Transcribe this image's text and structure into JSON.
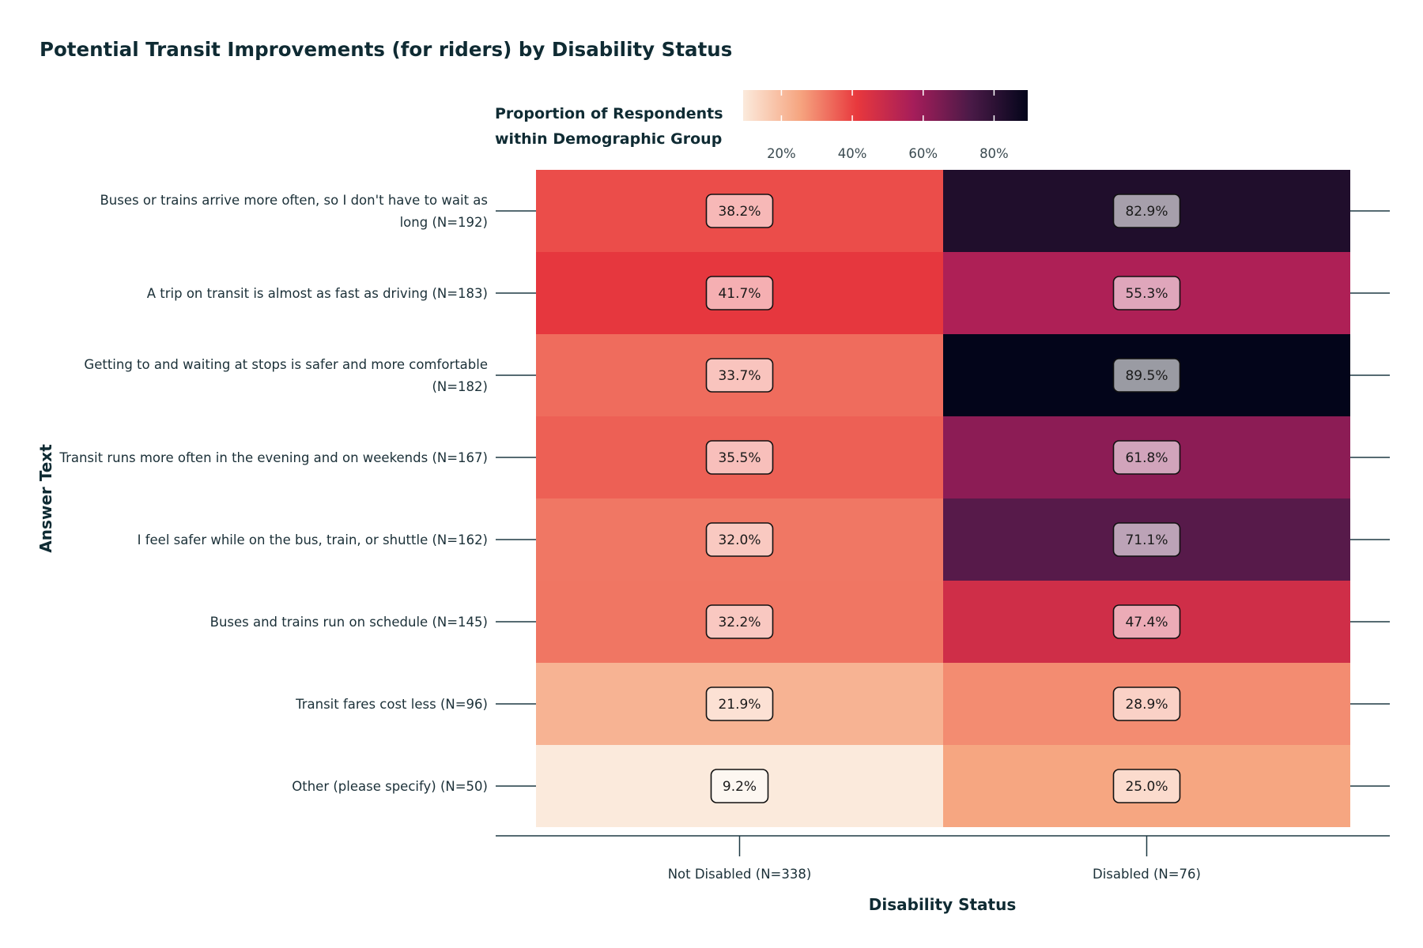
{
  "colors": {
    "text_dark": "#0f2b33",
    "axis": "#1e3a44",
    "scale_stops": [
      "#fbeadc",
      "#f6a580",
      "#e8383d",
      "#a51d5a",
      "#4a1a47",
      "#03051a"
    ]
  },
  "chart_data": {
    "type": "heatmap",
    "title": "Potential Transit Improvements (for riders) by Disability Status",
    "xlabel": "Disability Status",
    "ylabel": "Answer Text",
    "x_categories": [
      "Not Disabled (N=338)",
      "Disabled (N=76)"
    ],
    "y_categories": [
      "Buses or trains arrive more often, so I don't have to wait as long (N=192)",
      "A trip on transit is almost as fast as driving (N=183)",
      "Getting to and waiting at stops is safer and more comfortable (N=182)",
      "Transit runs more often in the evening and on weekends (N=167)",
      "I feel safer while on the bus, train, or shuttle (N=162)",
      "Buses and trains run on schedule (N=145)",
      "Transit fares cost less (N=96)",
      "Other (please specify) (N=50)"
    ],
    "values": [
      [
        38.2,
        82.9
      ],
      [
        41.7,
        55.3
      ],
      [
        33.7,
        89.5
      ],
      [
        35.5,
        61.8
      ],
      [
        32.0,
        71.1
      ],
      [
        32.2,
        47.4
      ],
      [
        21.9,
        28.9
      ],
      [
        9.2,
        25.0
      ]
    ],
    "cell_labels": [
      [
        "38.2%",
        "82.9%"
      ],
      [
        "41.7%",
        "55.3%"
      ],
      [
        "33.7%",
        "89.5%"
      ],
      [
        "35.5%",
        "61.8%"
      ],
      [
        "32.0%",
        "71.1%"
      ],
      [
        "32.2%",
        "47.4%"
      ],
      [
        "21.9%",
        "28.9%"
      ],
      [
        "9.2%",
        "25.0%"
      ]
    ],
    "legend": {
      "title": "Proportion of Respondents within Demographic Group",
      "title_lines": [
        "Proportion of Respondents",
        "within Demographic Group"
      ],
      "placement": "top",
      "range": [
        9.2,
        89.5
      ],
      "tick_values": [
        20,
        40,
        60,
        80
      ],
      "tick_labels": [
        "20%",
        "40%",
        "60%",
        "80%"
      ]
    }
  }
}
